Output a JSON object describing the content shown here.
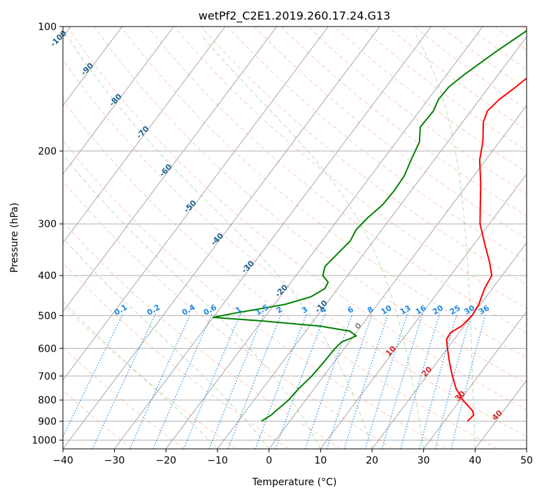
{
  "chart_data": {
    "type": "skew-t",
    "title": "wetPf2_C2E1.2019.260.17.24.G13",
    "xlabel": "Temperature (°C)",
    "ylabel": "Pressure (hPa)",
    "xlim": [
      -40,
      50
    ],
    "ylim": [
      1050,
      100
    ],
    "x_ticks": [
      -40,
      -30,
      -20,
      -10,
      0,
      10,
      20,
      30,
      40,
      50
    ],
    "y_ticks": [
      100,
      200,
      300,
      400,
      500,
      600,
      700,
      800,
      900,
      1000
    ],
    "y_scale": "log",
    "grid": true,
    "series": [
      {
        "key": "temperature",
        "color": "#ff0000",
        "points": [
          [
            900,
            34.5
          ],
          [
            870,
            34.8
          ],
          [
            850,
            34.0
          ],
          [
            800,
            30.5
          ],
          [
            750,
            27.5
          ],
          [
            700,
            25.0
          ],
          [
            650,
            22.5
          ],
          [
            600,
            20.0
          ],
          [
            570,
            18.5
          ],
          [
            550,
            18.3
          ],
          [
            530,
            19.5
          ],
          [
            500,
            20.0
          ],
          [
            470,
            19.7
          ],
          [
            430,
            18.5
          ],
          [
            400,
            18.0
          ],
          [
            370,
            15.5
          ],
          [
            340,
            12.5
          ],
          [
            300,
            8.2
          ],
          [
            270,
            5.5
          ],
          [
            240,
            2.5
          ],
          [
            210,
            -1.2
          ],
          [
            190,
            -3.2
          ],
          [
            170,
            -6.0
          ],
          [
            160,
            -6.8
          ],
          [
            150,
            -6.2
          ],
          [
            140,
            -4.8
          ],
          [
            130,
            -3.5
          ],
          [
            120,
            -2.3
          ],
          [
            110,
            -0.8
          ],
          [
            100,
            1.0
          ]
        ]
      },
      {
        "key": "dewpoint",
        "color": "#008000",
        "points": [
          [
            900,
            -5.5
          ],
          [
            870,
            -4.5
          ],
          [
            850,
            -4.2
          ],
          [
            800,
            -3.3
          ],
          [
            750,
            -3.0
          ],
          [
            700,
            -2.3
          ],
          [
            650,
            -2.0
          ],
          [
            600,
            -1.8
          ],
          [
            580,
            -1.5
          ],
          [
            560,
            0.5
          ],
          [
            545,
            -1.5
          ],
          [
            530,
            -8.0
          ],
          [
            515,
            -20.0
          ],
          [
            505,
            -30.0
          ],
          [
            495,
            -27.0
          ],
          [
            470,
            -18.0
          ],
          [
            450,
            -14.0
          ],
          [
            430,
            -12.5
          ],
          [
            415,
            -12.8
          ],
          [
            400,
            -14.8
          ],
          [
            380,
            -15.7
          ],
          [
            350,
            -15.0
          ],
          [
            330,
            -14.5
          ],
          [
            310,
            -15.0
          ],
          [
            290,
            -14.5
          ],
          [
            270,
            -13.5
          ],
          [
            250,
            -13.3
          ],
          [
            230,
            -13.5
          ],
          [
            210,
            -14.5
          ],
          [
            190,
            -15.5
          ],
          [
            175,
            -17.5
          ],
          [
            160,
            -17.3
          ],
          [
            150,
            -18.0
          ],
          [
            140,
            -17.8
          ],
          [
            130,
            -16.5
          ],
          [
            115,
            -13.8
          ],
          [
            100,
            -10.3
          ]
        ]
      }
    ],
    "isotherm_labels": [
      "-100",
      "-90",
      "-80",
      "-70",
      "-60",
      "-50",
      "-40",
      "-30",
      "-20",
      "-10"
    ],
    "mixing_ratio_labels": [
      "0.1",
      "0.2",
      "0.4",
      "0.6",
      "1",
      "1.5",
      "2",
      "3",
      "4",
      "6",
      "8",
      "10",
      "13",
      "16",
      "20",
      "25",
      "30",
      "36"
    ],
    "dry_adiabat_labels": [
      "0",
      "10",
      "20",
      "30",
      "40"
    ]
  }
}
